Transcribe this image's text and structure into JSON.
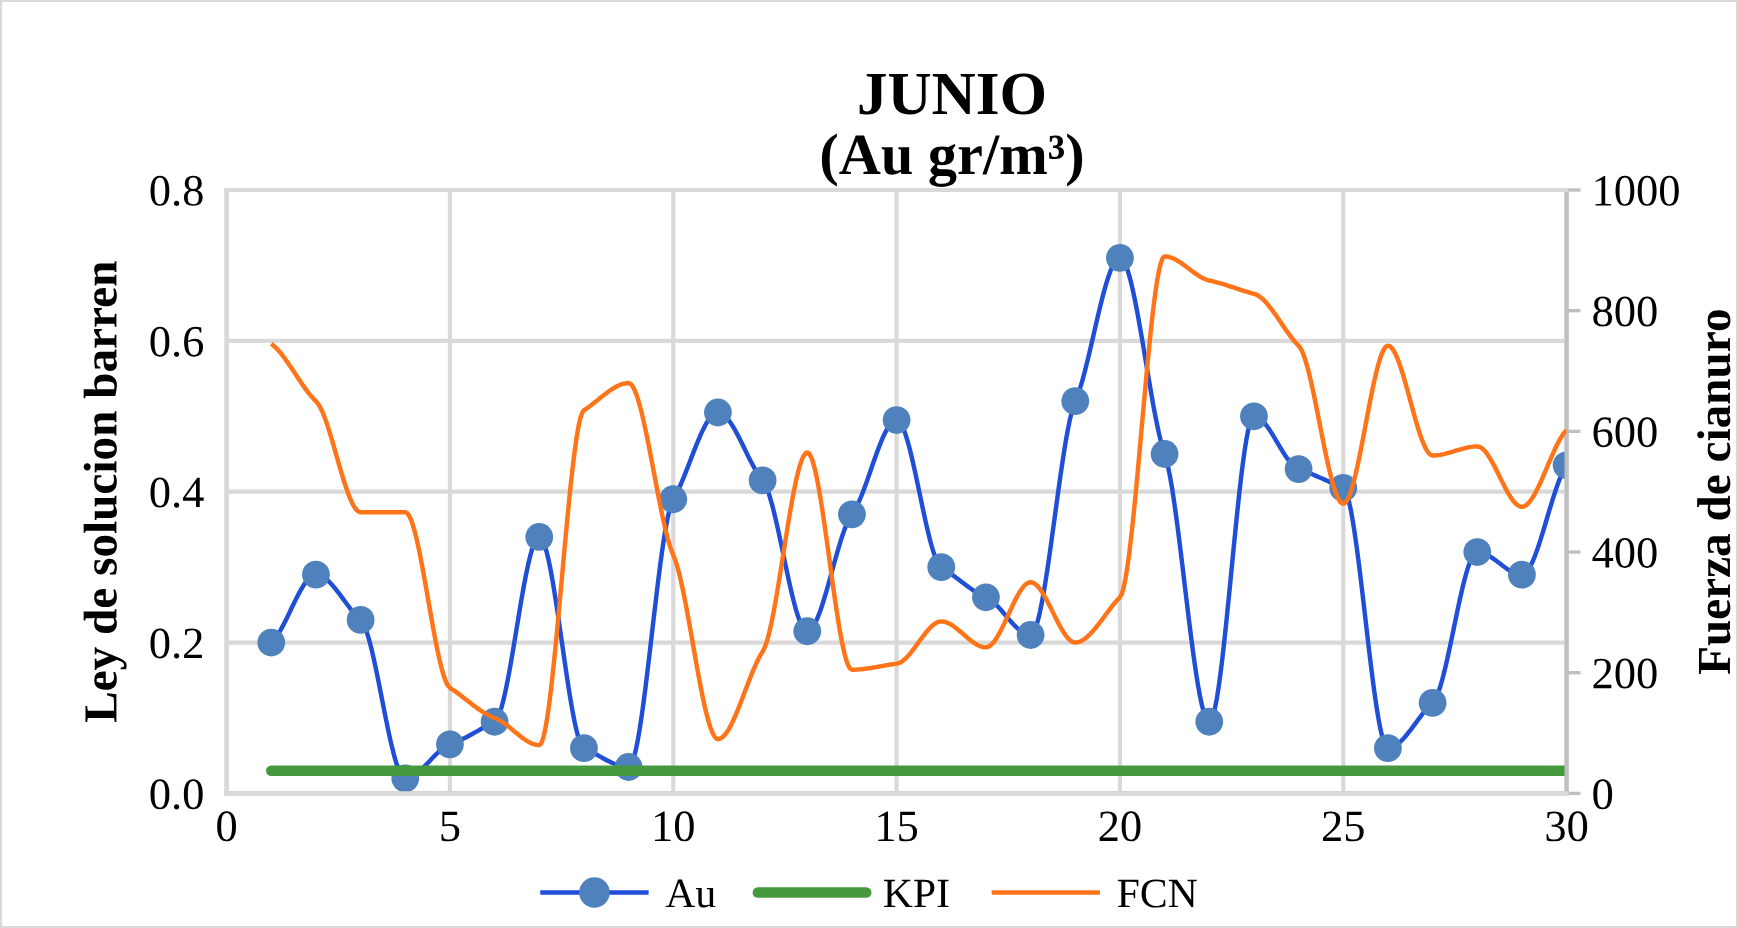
{
  "chart_data": {
    "type": "line",
    "title": "JUNIO",
    "subtitle": "(Au gr/m³)",
    "ylabel": "Ley de solucion barren",
    "y2label": "Fuerza de cianuro",
    "x": [
      1,
      2,
      3,
      4,
      5,
      6,
      7,
      8,
      9,
      10,
      11,
      12,
      13,
      14,
      15,
      16,
      17,
      18,
      19,
      20,
      21,
      22,
      23,
      24,
      25,
      26,
      27,
      28,
      29,
      30
    ],
    "xlim": [
      0,
      30
    ],
    "xticks": [
      0,
      5,
      10,
      15,
      20,
      25,
      30
    ],
    "ylim": [
      0,
      0.8
    ],
    "yticks": [
      {
        "value": 0,
        "label": "0.0"
      },
      0.2,
      0.4,
      0.6,
      0.8
    ],
    "y2lim": [
      0,
      1000
    ],
    "y2ticks": [
      0,
      200,
      400,
      600,
      800,
      1000
    ],
    "grid": true,
    "legend": "bottom",
    "series": [
      {
        "name": "Au",
        "color": "#1f4fd6",
        "marker": "circle",
        "colors": [
          "#4f81bd",
          "#4f81bd",
          "#4f81bd",
          "#4f81bd",
          "#4f81bd",
          "#4f81bd",
          "#4f81bd",
          "#4f81bd",
          "#4f81bd",
          "#4f81bd",
          "#4f81bd",
          "#4f81bd",
          "#4f81bd",
          "#4f81bd",
          "#4f81bd",
          "#4f81bd",
          "#4f81bd",
          "#4f81bd",
          "#4f81bd",
          "#4f81bd",
          "#4f81bd",
          "#4f81bd",
          "#4f81bd",
          "#4f81bd",
          "#4f81bd",
          "#4f81bd",
          "#4f81bd",
          "#4f81bd",
          "#4f81bd",
          "#4f81bd"
        ],
        "values": [
          0.2,
          0.29,
          0.23,
          0.02,
          0.065,
          0.095,
          0.34,
          0.06,
          0.035,
          0.39,
          0.505,
          0.415,
          0.215,
          0.37,
          0.495,
          0.3,
          0.26,
          0.21,
          0.52,
          0.71,
          0.45,
          0.095,
          0.5,
          0.43,
          0.405,
          0.06,
          0.12,
          0.32,
          0.29,
          0.435
        ]
      },
      {
        "name": "KPI",
        "color": "#46993f",
        "values": [
          0.03,
          0.03,
          0.03,
          0.03,
          0.03,
          0.03,
          0.03,
          0.03,
          0.03,
          0.03,
          0.03,
          0.03,
          0.03,
          0.03,
          0.03,
          0.03,
          0.03,
          0.03,
          0.03,
          0.03,
          0.03,
          0.03,
          0.03,
          0.03,
          0.03,
          0.03,
          0.03,
          0.03,
          0.03,
          0.03
        ]
      },
      {
        "name": "FCN",
        "color": "#ff7418",
        "axis": "y2",
        "values": [
          745,
          650,
          466,
          466,
          175,
          125,
          80,
          635,
          680,
          395,
          90,
          235,
          565,
          205,
          215,
          285,
          242,
          350,
          250,
          325,
          890,
          850,
          828,
          742,
          480,
          742,
          560,
          575,
          475,
          602
        ]
      }
    ]
  }
}
